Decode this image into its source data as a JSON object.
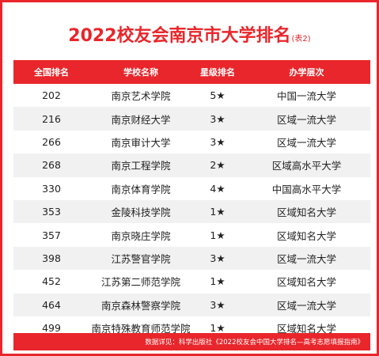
{
  "title": "2022校友会南京市大学排名",
  "subtitle": "(表2)",
  "headers": [
    "全国排名",
    "学校名称",
    "星级排名",
    "办学层次"
  ],
  "rows": [
    [
      "202",
      "南京艺术学院",
      "5★",
      "中国一流大学"
    ],
    [
      "216",
      "南京财经大学",
      "3★",
      "区域一流大学"
    ],
    [
      "266",
      "南京审计大学",
      "3★",
      "区域一流大学"
    ],
    [
      "268",
      "南京工程学院",
      "2★",
      "区域高水平大学"
    ],
    [
      "330",
      "南京体育学院",
      "4★",
      "中国高水平大学"
    ],
    [
      "353",
      "金陵科技学院",
      "1★",
      "区域知名大学"
    ],
    [
      "357",
      "南京晓庄学院",
      "1★",
      "区域知名大学"
    ],
    [
      "398",
      "江苏警官学院",
      "3★",
      "区域一流大学"
    ],
    [
      "452",
      "江苏第二师范学院",
      "1★",
      "区域知名大学"
    ],
    [
      "464",
      "南京森林警察学院",
      "3★",
      "区域一流大学"
    ],
    [
      "499",
      "南京特殊教育师范学院",
      "1★",
      "区域知名大学"
    ]
  ],
  "footer": "数据详见：科学出版社《2022校友会中国大学排名—高考志愿填报指南》",
  "colors": {
    "accent": "#e8262b",
    "row_alt": "#f1f1f1"
  }
}
